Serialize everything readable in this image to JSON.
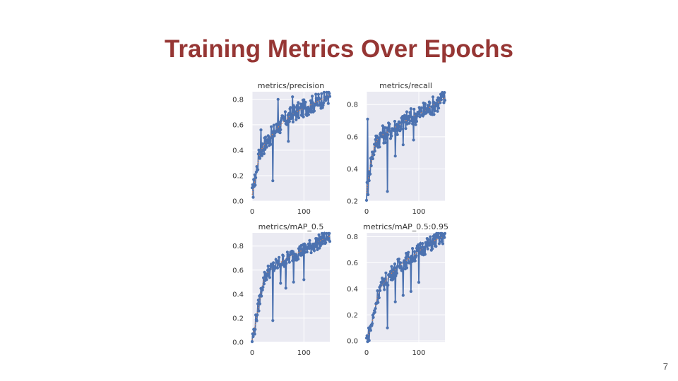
{
  "slide": {
    "title": "Training Metrics Over Epochs",
    "page_number": "7"
  },
  "colors": {
    "title": "#963634",
    "line": "#4c72b0",
    "smooth": "#dd8452",
    "plot_bg": "#eaeaf2",
    "grid": "#ffffff"
  },
  "chart_data": [
    {
      "type": "line",
      "title": "metrics/precision",
      "xlim": [
        0,
        150
      ],
      "ylim": [
        0,
        0.86
      ],
      "xticks": [
        "0",
        "100"
      ],
      "yticks": [
        "0.0",
        "0.2",
        "0.4",
        "0.6",
        "0.8"
      ],
      "anchors": [
        [
          0,
          0.05
        ],
        [
          5,
          0.15
        ],
        [
          10,
          0.28
        ],
        [
          15,
          0.38
        ],
        [
          20,
          0.42
        ],
        [
          30,
          0.48
        ],
        [
          40,
          0.53
        ],
        [
          50,
          0.58
        ],
        [
          60,
          0.62
        ],
        [
          70,
          0.66
        ],
        [
          80,
          0.69
        ],
        [
          90,
          0.71
        ],
        [
          100,
          0.73
        ],
        [
          110,
          0.75
        ],
        [
          120,
          0.77
        ],
        [
          130,
          0.79
        ],
        [
          140,
          0.81
        ],
        [
          148,
          0.83
        ]
      ],
      "noise": 0.07,
      "outliers": [
        [
          3,
          0.17
        ],
        [
          12,
          0.37
        ],
        [
          17,
          0.56
        ],
        [
          40,
          0.16
        ],
        [
          50,
          0.8
        ],
        [
          70,
          0.47
        ],
        [
          78,
          0.82
        ]
      ]
    },
    {
      "type": "line",
      "title": "metrics/recall",
      "xlim": [
        0,
        150
      ],
      "ylim": [
        0.2,
        0.88
      ],
      "xticks": [
        "0",
        "100"
      ],
      "yticks": [
        "0.2",
        "0.4",
        "0.6",
        "0.8"
      ],
      "anchors": [
        [
          0,
          0.25
        ],
        [
          5,
          0.38
        ],
        [
          10,
          0.47
        ],
        [
          15,
          0.54
        ],
        [
          20,
          0.58
        ],
        [
          30,
          0.61
        ],
        [
          40,
          0.63
        ],
        [
          50,
          0.65
        ],
        [
          60,
          0.67
        ],
        [
          70,
          0.69
        ],
        [
          80,
          0.71
        ],
        [
          90,
          0.73
        ],
        [
          100,
          0.74
        ],
        [
          110,
          0.76
        ],
        [
          120,
          0.78
        ],
        [
          130,
          0.8
        ],
        [
          140,
          0.82
        ],
        [
          148,
          0.84
        ]
      ],
      "noise": 0.06,
      "outliers": [
        [
          2,
          0.71
        ],
        [
          3,
          0.24
        ],
        [
          40,
          0.26
        ],
        [
          55,
          0.48
        ],
        [
          70,
          0.55
        ],
        [
          90,
          0.58
        ]
      ]
    },
    {
      "type": "line",
      "title": "metrics/mAP_0.5",
      "xlim": [
        0,
        150
      ],
      "ylim": [
        0,
        0.91
      ],
      "xticks": [
        "0",
        "100"
      ],
      "yticks": [
        "0.0",
        "0.2",
        "0.4",
        "0.6",
        "0.8"
      ],
      "anchors": [
        [
          0,
          0.02
        ],
        [
          5,
          0.12
        ],
        [
          10,
          0.25
        ],
        [
          15,
          0.36
        ],
        [
          20,
          0.48
        ],
        [
          25,
          0.55
        ],
        [
          30,
          0.58
        ],
        [
          40,
          0.62
        ],
        [
          50,
          0.65
        ],
        [
          60,
          0.68
        ],
        [
          70,
          0.7
        ],
        [
          80,
          0.73
        ],
        [
          90,
          0.75
        ],
        [
          100,
          0.77
        ],
        [
          110,
          0.79
        ],
        [
          120,
          0.81
        ],
        [
          130,
          0.84
        ],
        [
          140,
          0.86
        ],
        [
          148,
          0.88
        ]
      ],
      "noise": 0.06,
      "outliers": [
        [
          40,
          0.18
        ],
        [
          55,
          0.49
        ],
        [
          65,
          0.45
        ],
        [
          80,
          0.5
        ],
        [
          100,
          0.52
        ]
      ]
    },
    {
      "type": "line",
      "title": "metrics/mAP_0.5:0.95",
      "xlim": [
        0,
        150
      ],
      "ylim": [
        -0.01,
        0.83
      ],
      "xticks": [
        "0",
        "100"
      ],
      "yticks": [
        "0.0",
        "0.2",
        "0.4",
        "0.6",
        "0.8"
      ],
      "anchors": [
        [
          0,
          0.01
        ],
        [
          5,
          0.06
        ],
        [
          10,
          0.13
        ],
        [
          15,
          0.22
        ],
        [
          20,
          0.33
        ],
        [
          25,
          0.39
        ],
        [
          30,
          0.43
        ],
        [
          40,
          0.48
        ],
        [
          50,
          0.53
        ],
        [
          60,
          0.57
        ],
        [
          70,
          0.6
        ],
        [
          80,
          0.63
        ],
        [
          90,
          0.66
        ],
        [
          100,
          0.69
        ],
        [
          110,
          0.72
        ],
        [
          120,
          0.74
        ],
        [
          130,
          0.77
        ],
        [
          140,
          0.79
        ],
        [
          148,
          0.8
        ]
      ],
      "noise": 0.06,
      "outliers": [
        [
          40,
          0.1
        ],
        [
          55,
          0.3
        ],
        [
          70,
          0.35
        ],
        [
          85,
          0.38
        ],
        [
          100,
          0.45
        ]
      ]
    }
  ]
}
